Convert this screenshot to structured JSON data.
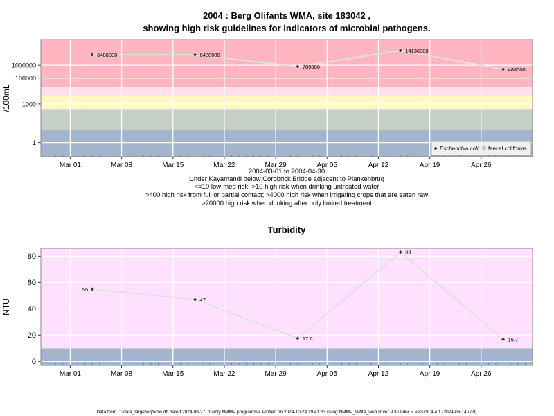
{
  "title_line1": "2004 : Berg Olifants WMA, site 183042 ,",
  "title_line2": "showing high risk guidelines for indicators of microbial pathogens.",
  "subtitle_lines": [
    "2004-03-01 to 2004-04-30",
    "Under Kayamandi below Corobrick Bridge adjacent to Plankenbrug",
    "<=10 low-med risk; >10 high risk when drinking untreated water",
    ">400 high risk from full or partial contact; >4000 high risk when irrigating crops that are eaten raw",
    ">20000 high risk when drinking after only limited treatment"
  ],
  "footer": "Data from D:/data_large/wq/wms.db dated 2024-08-27, mainly NMMP programme. Plotted on 2024-10-24 19:41:33 using NMMP_WMA_web.R ver 9.3 under R version 4.4.1 (2024-06-14 ucrt)",
  "colors": {
    "red_band": "#ffb6c1",
    "light_pink_band": "#ffe0ec",
    "yellow_band": "#fff8c0",
    "green_band": "#c5cfc5",
    "blue_band": "#a2b5cd",
    "turbidity_bg": "#ffe0ff",
    "line": "#e0e0e0",
    "point": "#333333"
  },
  "chart_data": [
    {
      "type": "line",
      "ylabel": "/100mL",
      "y_scale": "log",
      "ylim": [
        0.08,
        100000000
      ],
      "yticks": [
        1,
        1000,
        100000,
        1000000
      ],
      "ytick_labels": [
        "1",
        "1000",
        "100000",
        "1000000"
      ],
      "xlim": [
        "2004-02-26",
        "2004-05-03"
      ],
      "xticks": [
        "2004-03-01",
        "2004-03-08",
        "2004-03-15",
        "2004-03-22",
        "2004-03-29",
        "2004-04-05",
        "2004-04-12",
        "2004-04-19",
        "2004-04-26"
      ],
      "xtick_labels": [
        "Mar 01",
        "Mar 08",
        "Mar 15",
        "Mar 22",
        "Mar 29",
        "Apr 05",
        "Apr 12",
        "Apr 19",
        "Apr 26"
      ],
      "bands": [
        {
          "from": 0.08,
          "to": 10,
          "color": "#a2b5cd"
        },
        {
          "from": 10,
          "to": 400,
          "color": "#c5cfc5"
        },
        {
          "from": 400,
          "to": 4000,
          "color": "#fff8c0"
        },
        {
          "from": 4000,
          "to": 20000,
          "color": "#ffe0ec"
        },
        {
          "from": 20000,
          "to": 100000000,
          "color": "#ffb6c1"
        }
      ],
      "series": [
        {
          "name": "Escherichia coli",
          "x": [
            "2004-03-04",
            "2004-03-18",
            "2004-04-01",
            "2004-04-15",
            "2004-04-29"
          ],
          "values": [
            6488000,
            6488000,
            789000,
            14136000,
            488000
          ],
          "labels": [
            "6488000",
            "6488000",
            "789000",
            "14136000",
            "488000"
          ]
        }
      ],
      "legend": {
        "position": "bottom-right",
        "entries": [
          "Escherichia coli",
          "faecal coliforms"
        ]
      }
    },
    {
      "type": "line",
      "title": "Turbidity",
      "ylabel": "NTU",
      "ylim": [
        -3,
        86
      ],
      "yticks": [
        0,
        20,
        40,
        60,
        80
      ],
      "ytick_labels": [
        "0",
        "20",
        "40",
        "60",
        "80"
      ],
      "xlim": [
        "2004-02-26",
        "2004-05-03"
      ],
      "xticks": [
        "2004-03-01",
        "2004-03-08",
        "2004-03-15",
        "2004-03-22",
        "2004-03-29",
        "2004-04-05",
        "2004-04-12",
        "2004-04-19",
        "2004-04-26"
      ],
      "xtick_labels": [
        "Mar 01",
        "Mar 08",
        "Mar 15",
        "Mar 22",
        "Mar 29",
        "Apr 05",
        "Apr 12",
        "Apr 19",
        "Apr 26"
      ],
      "bands": [
        {
          "from": -3,
          "to": 10,
          "color": "#a2b5cd"
        },
        {
          "from": 10,
          "to": 86,
          "color": "#ffe0ff"
        }
      ],
      "series": [
        {
          "x": [
            "2004-03-04",
            "2004-03-18",
            "2004-04-01",
            "2004-04-15",
            "2004-04-29"
          ],
          "values": [
            55,
            47,
            17.6,
            83,
            16.7
          ],
          "labels": [
            "55",
            "47",
            "17.6",
            "83",
            "16.7"
          ],
          "label_side": [
            "left",
            "right",
            "right",
            "right",
            "right"
          ]
        }
      ]
    }
  ]
}
